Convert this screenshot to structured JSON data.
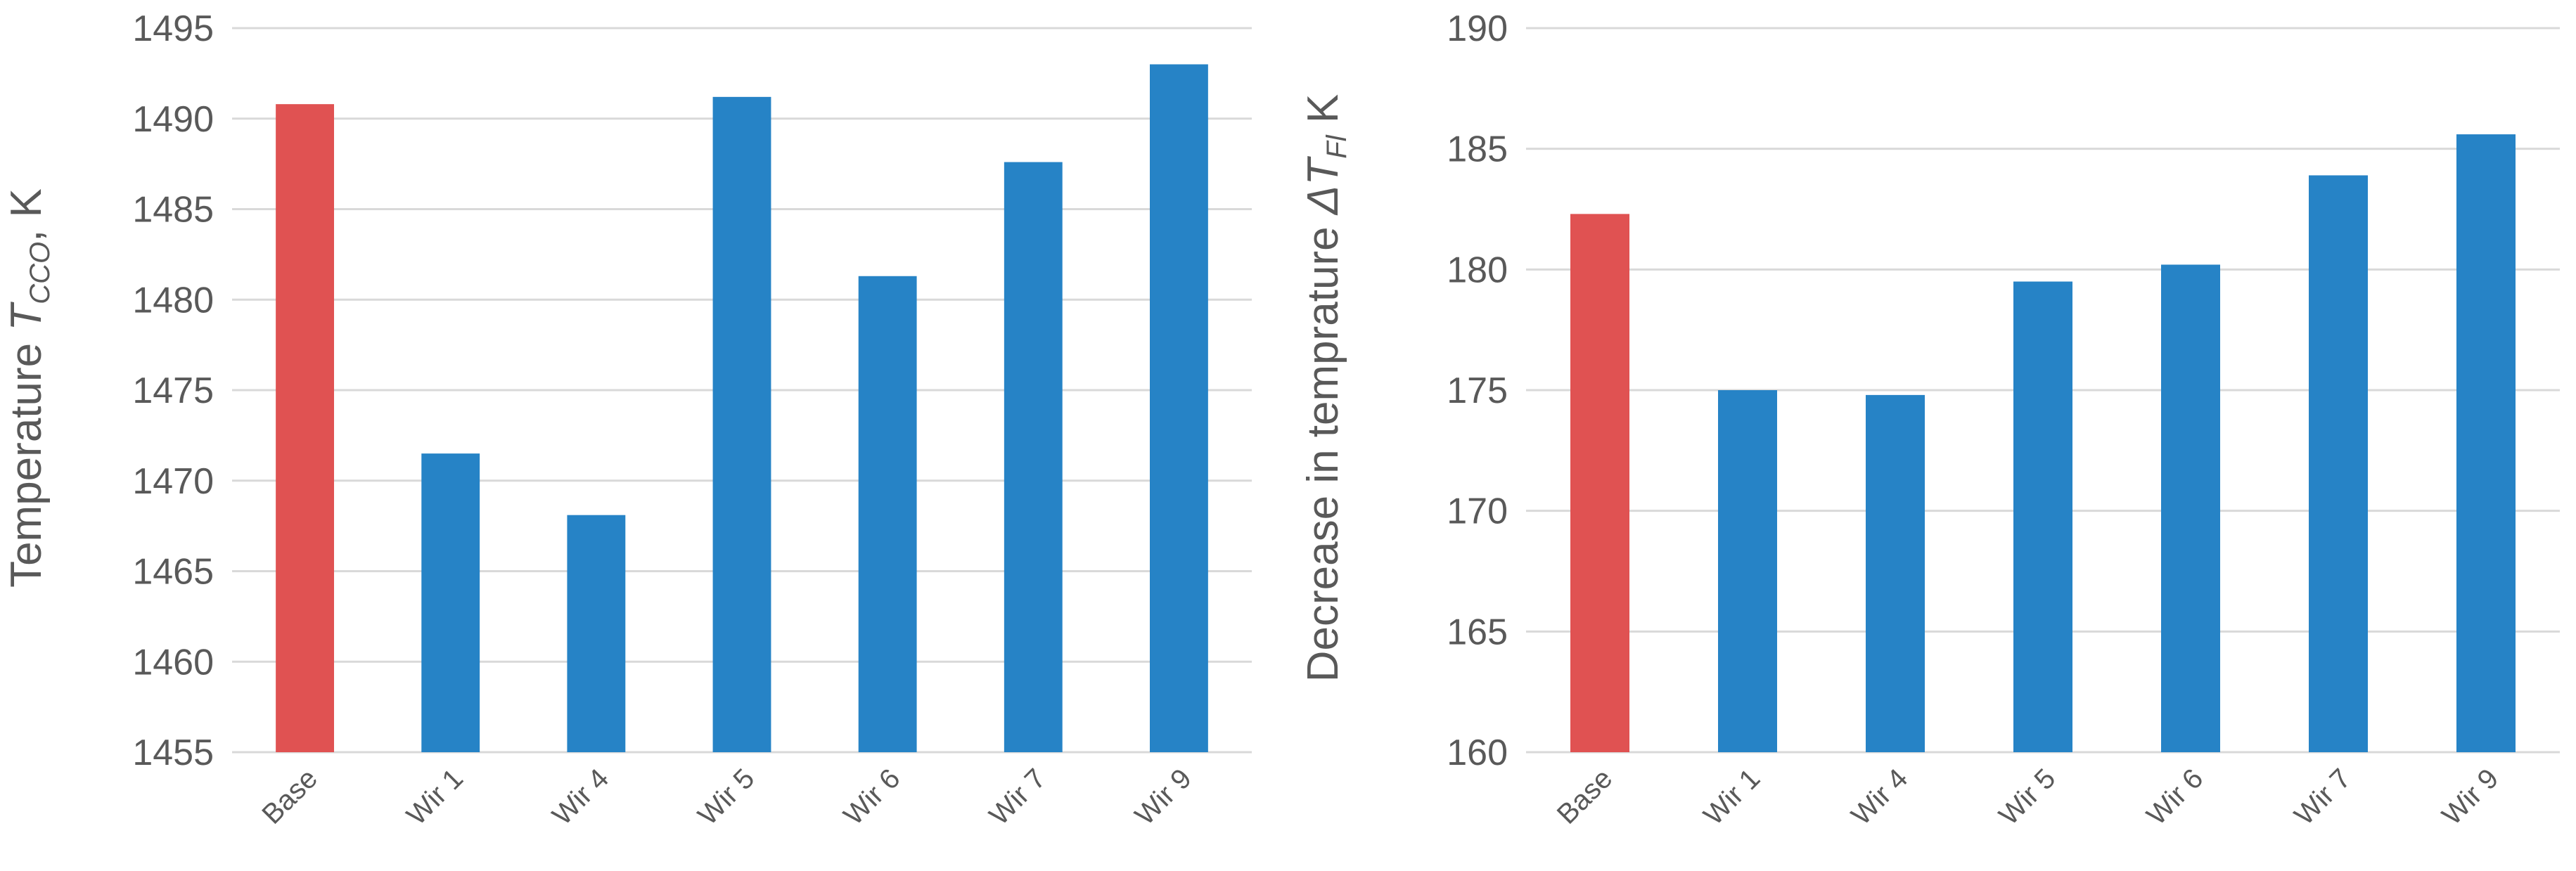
{
  "chart_data": [
    {
      "type": "bar",
      "categories": [
        "Base",
        "Wir 1",
        "Wir 4",
        "Wir 5",
        "Wir 6",
        "Wir 7",
        "Wir 9"
      ],
      "values": [
        1490.8,
        1471.5,
        1468.1,
        1491.2,
        1481.3,
        1487.6,
        1493.0
      ],
      "ylabel": {
        "main": "Temperature ",
        "symbol": "T",
        "subscript": "CCO",
        "unit": ", K"
      },
      "ylim": [
        1455,
        1495
      ],
      "yticks": [
        1455,
        1460,
        1465,
        1470,
        1475,
        1480,
        1485,
        1490,
        1495
      ],
      "grid": true,
      "legend": "none",
      "highlight_index": 0
    },
    {
      "type": "bar",
      "categories": [
        "Base",
        "Wir 1",
        "Wir 4",
        "Wir 5",
        "Wir 6",
        "Wir 7",
        "Wir 9"
      ],
      "values": [
        182.3,
        175.0,
        174.8,
        179.5,
        180.2,
        183.9,
        185.6
      ],
      "ylabel": {
        "main": "Decrease in temprature ",
        "symbol": "ΔT",
        "subscript": "Fl",
        "unit": " K"
      },
      "ylim": [
        160,
        190
      ],
      "yticks": [
        160,
        165,
        170,
        175,
        180,
        185,
        190
      ],
      "grid": true,
      "legend": "none",
      "highlight_index": 0
    }
  ],
  "colors": {
    "highlight": "#e05252",
    "bar": "#2683c6",
    "grid": "#d9d9d9",
    "text": "#595959"
  }
}
